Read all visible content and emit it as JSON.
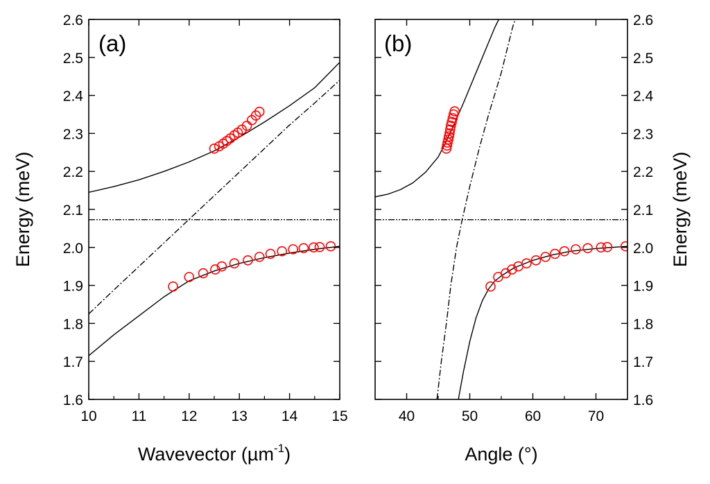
{
  "chart_data": [
    {
      "type": "line",
      "panel_label": "(a)",
      "xlabel": "Wavevector (µm",
      "xlabel_sup": "-1",
      "xlabel_end": ")",
      "ylabel": "Energy (meV)",
      "xlim": [
        10,
        15
      ],
      "ylim": [
        1.6,
        2.6
      ],
      "xticks": [
        "10",
        "11",
        "12",
        "13",
        "14",
        "15"
      ],
      "yticks": [
        "1.6",
        "1.7",
        "1.8",
        "1.9",
        "2.0",
        "2.1",
        "2.2",
        "2.3",
        "2.4",
        "2.5",
        "2.6"
      ],
      "grid": false,
      "legend": "none",
      "series": [
        {
          "style": "solid",
          "color": "#000000",
          "x": [
            10.0,
            10.5,
            11.0,
            11.5,
            12.0,
            12.5,
            13.0,
            13.5,
            14.0,
            14.5,
            15.0
          ],
          "y": [
            2.145,
            2.16,
            2.178,
            2.2,
            2.225,
            2.254,
            2.29,
            2.33,
            2.373,
            2.42,
            2.487
          ]
        },
        {
          "style": "solid",
          "color": "#000000",
          "x": [
            10.0,
            10.5,
            11.0,
            11.5,
            12.0,
            12.5,
            13.0,
            13.5,
            14.0,
            14.5,
            15.0
          ],
          "y": [
            1.715,
            1.77,
            1.82,
            1.87,
            1.912,
            1.938,
            1.958,
            1.973,
            1.985,
            1.995,
            2.003
          ]
        },
        {
          "style": "dashdot",
          "color": "#000000",
          "x": [
            10.0,
            10.5,
            11.0,
            11.5,
            12.0,
            12.5,
            13.0,
            13.5,
            14.0,
            14.5,
            15.0
          ],
          "y": [
            1.825,
            1.888,
            1.95,
            2.012,
            2.074,
            2.136,
            2.198,
            2.26,
            2.322,
            2.38,
            2.44
          ]
        },
        {
          "style": "dashdotdot",
          "color": "#000000",
          "x": [
            10.0,
            15.0
          ],
          "y": [
            2.073,
            2.073
          ]
        },
        {
          "style": "markers",
          "color": "#ff0000",
          "x": [
            12.5,
            12.6,
            12.68,
            12.75,
            12.82,
            12.9,
            12.97,
            13.05,
            13.15,
            13.25,
            13.33,
            13.4
          ],
          "y": [
            2.26,
            2.266,
            2.273,
            2.28,
            2.287,
            2.295,
            2.302,
            2.31,
            2.32,
            2.335,
            2.347,
            2.357
          ]
        },
        {
          "style": "markers",
          "color": "#ff0000",
          "x": [
            11.68,
            12.0,
            12.28,
            12.52,
            12.65,
            12.9,
            13.17,
            13.4,
            13.62,
            13.85,
            14.07,
            14.28,
            14.48,
            14.6,
            14.82
          ],
          "y": [
            1.897,
            1.922,
            1.932,
            1.942,
            1.95,
            1.958,
            1.966,
            1.975,
            1.983,
            1.99,
            1.995,
            1.998,
            2.0,
            2.001,
            2.003
          ]
        }
      ]
    },
    {
      "type": "line",
      "panel_label": "(b)",
      "xlabel": "Angle (°)",
      "ylabel": "Energy (meV)",
      "xlim": [
        35,
        75
      ],
      "ylim": [
        1.6,
        2.6
      ],
      "xticks": [
        "40",
        "50",
        "60",
        "70"
      ],
      "yticks": [
        "1.6",
        "1.7",
        "1.8",
        "1.9",
        "2.0",
        "2.1",
        "2.2",
        "2.3",
        "2.4",
        "2.5",
        "2.6"
      ],
      "grid": false,
      "legend": "none",
      "series": [
        {
          "style": "solid",
          "color": "#000000",
          "x": [
            35.0,
            37.0,
            39.0,
            41.0,
            43.0,
            45.0,
            46.0,
            47.0,
            48.0,
            49.0,
            50.0,
            51.0,
            52.0,
            53.0,
            54.0,
            54.6
          ],
          "y": [
            2.133,
            2.14,
            2.152,
            2.17,
            2.198,
            2.238,
            2.27,
            2.305,
            2.342,
            2.38,
            2.42,
            2.46,
            2.5,
            2.54,
            2.58,
            2.6
          ]
        },
        {
          "style": "solid",
          "color": "#000000",
          "x": [
            48.2,
            49.0,
            50.0,
            51.0,
            52.0,
            53.0,
            54.0,
            55.0,
            57.0,
            60.0,
            63.0,
            66.0,
            70.0,
            75.0
          ],
          "y": [
            1.6,
            1.673,
            1.752,
            1.815,
            1.86,
            1.891,
            1.912,
            1.925,
            1.946,
            1.966,
            1.98,
            1.99,
            1.997,
            2.003
          ]
        },
        {
          "style": "dashdot",
          "color": "#000000",
          "x": [
            44.8,
            45.5,
            46.3,
            47.0,
            47.9,
            48.8,
            50.0,
            51.5,
            53.0,
            55.0,
            56.8,
            57.2
          ],
          "y": [
            1.6,
            1.7,
            1.8,
            1.9,
            2.0,
            2.073,
            2.16,
            2.26,
            2.35,
            2.46,
            2.58,
            2.6
          ]
        },
        {
          "style": "dashdotdot",
          "color": "#000000",
          "x": [
            35.0,
            75.0
          ],
          "y": [
            2.073,
            2.073
          ]
        },
        {
          "style": "markers",
          "color": "#ff0000",
          "x": [
            46.3,
            46.4,
            46.5,
            46.6,
            46.7,
            46.8,
            46.9,
            47.0,
            47.15,
            47.3,
            47.45,
            47.6
          ],
          "y": [
            2.26,
            2.268,
            2.276,
            2.284,
            2.292,
            2.3,
            2.31,
            2.32,
            2.33,
            2.34,
            2.35,
            2.358
          ]
        },
        {
          "style": "markers",
          "color": "#ff0000",
          "x": [
            53.3,
            54.5,
            55.7,
            56.7,
            57.7,
            59.0,
            60.5,
            62.0,
            63.5,
            65.0,
            66.8,
            68.7,
            70.8,
            71.8,
            74.7
          ],
          "y": [
            1.897,
            1.922,
            1.932,
            1.942,
            1.95,
            1.958,
            1.966,
            1.975,
            1.983,
            1.99,
            1.995,
            1.998,
            2.0,
            2.001,
            2.003
          ]
        }
      ]
    }
  ]
}
